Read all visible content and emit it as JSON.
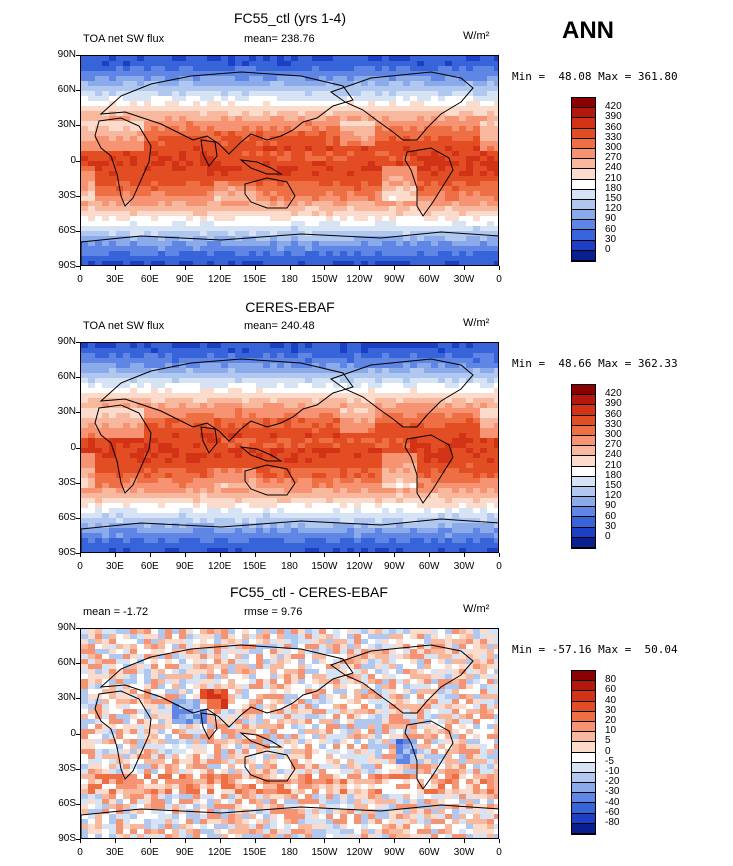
{
  "season": "ANN",
  "units": "W/m²",
  "lon_ticks": [
    "0",
    "30E",
    "60E",
    "90E",
    "120E",
    "150E",
    "180",
    "150W",
    "120W",
    "90W",
    "60W",
    "30W",
    "0"
  ],
  "lat_ticks": [
    "90N",
    "60N",
    "30N",
    "0",
    "30S",
    "60S",
    "90S"
  ],
  "panels": [
    {
      "title": "FC55_ctl (yrs 1-4)",
      "left_label": "TOA net SW flux",
      "center_label": "mean= 238.76",
      "stats": "Min =  48.08 Max = 361.80",
      "field": "model"
    },
    {
      "title": "CERES-EBAF",
      "left_label": "TOA net SW flux",
      "center_label": "mean= 240.48",
      "stats": "Min =  48.66 Max = 362.33",
      "field": "obs"
    },
    {
      "title": "FC55_ctl - CERES-EBAF",
      "left_label": "mean =  -1.72",
      "center_label": "rmse =   9.76",
      "stats": "Min = -57.16 Max =  50.04",
      "field": "diff"
    }
  ],
  "colorbars": {
    "abs": {
      "labels": [
        "420",
        "390",
        "360",
        "330",
        "300",
        "270",
        "240",
        "210",
        "180",
        "150",
        "120",
        "90",
        "60",
        "30",
        "0"
      ],
      "colors": [
        "#8b0000",
        "#b4180c",
        "#d23215",
        "#e24d24",
        "#ef6f45",
        "#f59373",
        "#f8b89e",
        "#fbdccc",
        "#ffffff",
        "#d6e3f5",
        "#b0c8f0",
        "#8aaaea",
        "#5f86e4",
        "#3764d8",
        "#1c3fc6",
        "#0a1f8f"
      ]
    },
    "diff": {
      "labels": [
        "80",
        "60",
        "40",
        "30",
        "20",
        "10",
        "5",
        "0",
        "-5",
        "-10",
        "-20",
        "-30",
        "-40",
        "-60",
        "-80"
      ],
      "colors": [
        "#8b0000",
        "#b4180c",
        "#d23215",
        "#e24d24",
        "#ef6f45",
        "#f59373",
        "#f8b89e",
        "#fbdccc",
        "#ffffff",
        "#d6e3f5",
        "#b0c8f0",
        "#8aaaea",
        "#5f86e4",
        "#3764d8",
        "#1c3fc6",
        "#0a1f8f"
      ]
    }
  }
}
